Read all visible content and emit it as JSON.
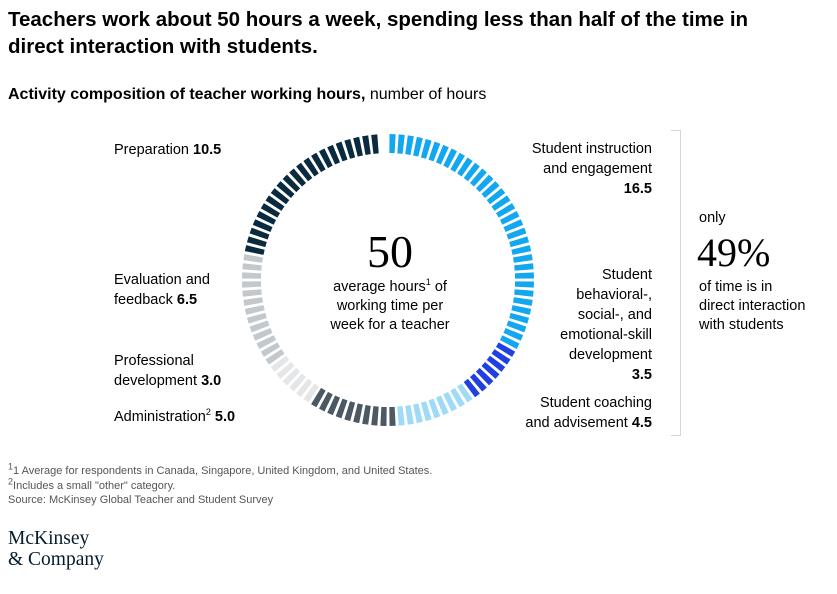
{
  "title": "Teachers work about 50 hours a week, spending less than half of the time in direct interaction with students.",
  "subtitle": {
    "bold": "Activity composition of teacher working hours,",
    "rest": " number of hours"
  },
  "center": {
    "value": "50",
    "line1": "average hours",
    "footnote_mark": "1",
    "line1_rest": " of",
    "line2": "working time per",
    "line3": "week for a teacher"
  },
  "share": {
    "pre": "only",
    "value": "49%",
    "post_lines": [
      "of time is in",
      "direct interaction",
      "with students"
    ]
  },
  "labels": {
    "preparation": {
      "name": "Preparation",
      "value": "10.5"
    },
    "instruction": {
      "lines": [
        "Student instruction",
        "and engagement"
      ],
      "value": "16.5"
    },
    "behavioral": {
      "lines": [
        "Student",
        "behavioral-,",
        "social-, and",
        "emotional-skill",
        "development"
      ],
      "value": "3.5"
    },
    "coaching": {
      "lines": [
        "Student coaching"
      ],
      "last": "and advisement",
      "value": "4.5"
    },
    "evaluation": {
      "lines": [
        "Evaluation and"
      ],
      "last": "feedback",
      "value": "6.5"
    },
    "professional": {
      "lines": [
        "Professional"
      ],
      "last": "development",
      "value": "3.0"
    },
    "administration": {
      "name": "Administration",
      "mark": "2",
      "value": "5.0"
    }
  },
  "footnotes": [
    {
      "mark": "1",
      "text": "1 Average for respondents in Canada, Singapore, United Kingdom, and United States."
    },
    {
      "mark": "2",
      "text": "Includes a small \"other\" category."
    },
    {
      "text": "Source: McKinsey Global Teacher and Student Survey"
    }
  ],
  "logo": {
    "line1": "McKinsey",
    "line2": "& Company"
  },
  "chart_data": {
    "type": "pie",
    "style": "segmented donut, one tick per 0.5 hour",
    "total": 50,
    "slices": [
      {
        "category": "Student instruction and engagement",
        "value": 16.5,
        "color": "#13a7ef"
      },
      {
        "category": "Student behavioral-, social-, and emotional-skill development",
        "value": 3.5,
        "color": "#2140e2"
      },
      {
        "category": "Student coaching and advisement",
        "value": 4.5,
        "color": "#9fdaf7"
      },
      {
        "category": "Administration",
        "value": 5.0,
        "color": "#4c5964"
      },
      {
        "category": "Professional development",
        "value": 3.0,
        "color": "#e4e6e8"
      },
      {
        "category": "Evaluation and feedback",
        "value": 6.5,
        "color": "#c3c8cc"
      },
      {
        "category": "Preparation",
        "value": 10.5,
        "color": "#0a2a40"
      }
    ],
    "direct_interaction_share": 49
  }
}
